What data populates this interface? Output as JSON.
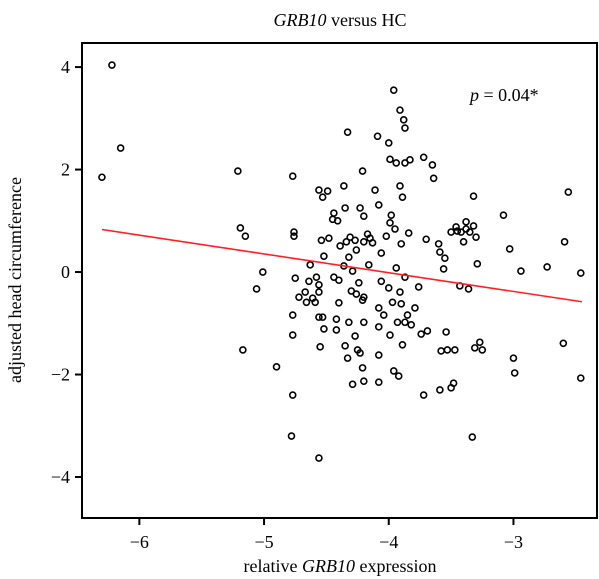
{
  "chart_data": {
    "type": "scatter",
    "title": [
      "GRB10",
      "versus HC"
    ],
    "x_label": [
      "relative",
      "GRB10",
      "expression"
    ],
    "y_label": "adjusted head circumference",
    "annotation": [
      "p",
      "= 0.04*"
    ],
    "xlim": [
      -6.46,
      -2.33
    ],
    "ylim": [
      -4.8,
      4.47
    ],
    "xticks": [
      {
        "value": -6,
        "label": "−6"
      },
      {
        "value": -5,
        "label": "−5"
      },
      {
        "value": -4,
        "label": "−4"
      },
      {
        "value": -3,
        "label": "−3"
      }
    ],
    "yticks": [
      {
        "value": -4,
        "label": "−4"
      },
      {
        "value": -2,
        "label": "−2"
      },
      0,
      2,
      4
    ],
    "point_color": "#000000",
    "fit_line": {
      "color": "#ff2020",
      "x": [
        -6.3,
        -2.45
      ],
      "y": [
        0.83,
        -0.58
      ]
    },
    "x": [
      -6.22,
      -6.15,
      -6.3,
      -5.21,
      -5.19,
      -5.15,
      -5.01,
      -5.06,
      -5.17,
      -4.9,
      -4.77,
      -4.76,
      -4.76,
      -4.75,
      -4.77,
      -4.77,
      -4.77,
      -4.78,
      -4.72,
      -4.67,
      -4.63,
      -4.64,
      -4.61,
      -4.59,
      -4.66,
      -4.58,
      -4.56,
      -4.56,
      -4.56,
      -4.53,
      -4.49,
      -4.56,
      -4.55,
      -4.56,
      -4.53,
      -4.52,
      -4.52,
      -4.54,
      -4.48,
      -4.45,
      -4.44,
      -4.41,
      -4.44,
      -4.4,
      -4.4,
      -4.42,
      -4.42,
      -4.39,
      -4.36,
      -4.35,
      -4.36,
      -4.33,
      -4.34,
      -4.31,
      -4.32,
      -4.3,
      -4.29,
      -4.35,
      -4.33,
      -4.29,
      -4.32,
      -4.27,
      -4.26,
      -4.26,
      -4.24,
      -4.27,
      -4.25,
      -4.23,
      -4.2,
      -4.21,
      -4.23,
      -4.2,
      -4.2,
      -4.17,
      -4.2,
      -4.2,
      -4.21,
      -4.21,
      -4.16,
      -4.15,
      -4.13,
      -4.11,
      -4.09,
      -4.08,
      -4.08,
      -4.08,
      -4.08,
      -4.08,
      -4.06,
      -4.06,
      -4.04,
      -4.02,
      -4.0,
      -4.0,
      -3.99,
      -3.99,
      -3.99,
      -3.98,
      -3.97,
      -3.96,
      -3.96,
      -3.95,
      -3.94,
      -3.94,
      -3.93,
      -3.92,
      -3.91,
      -3.91,
      -3.9,
      -3.91,
      -3.9,
      -3.89,
      -3.88,
      -3.87,
      -3.89,
      -3.87,
      -3.87,
      -3.87,
      -3.85,
      -3.84,
      -3.83,
      -3.82,
      -3.79,
      -3.76,
      -3.74,
      -3.72,
      -3.7,
      -3.72,
      -3.69,
      -3.65,
      -3.64,
      -3.6,
      -3.59,
      -3.58,
      -3.59,
      -3.56,
      -3.55,
      -3.54,
      -3.53,
      -3.5,
      -3.5,
      -3.48,
      -3.47,
      -3.46,
      -3.45,
      -3.43,
      -3.42,
      -3.4,
      -3.38,
      -3.38,
      -3.36,
      -3.35,
      -3.32,
      -3.32,
      -3.3,
      -3.31,
      -3.29,
      -3.33,
      -3.27,
      -3.25,
      -3.0,
      -2.99,
      -3.08,
      -3.03,
      -2.94,
      -2.73,
      -2.59,
      -2.56,
      -2.6,
      -2.46,
      -2.46
    ],
    "y": [
      4.04,
      2.42,
      1.85,
      1.97,
      0.86,
      0.7,
      0.0,
      -0.33,
      -1.52,
      -1.85,
      1.87,
      0.78,
      0.7,
      -0.12,
      -0.84,
      -1.23,
      -2.4,
      -3.2,
      -0.49,
      -0.39,
      0.14,
      -0.18,
      -0.51,
      -0.59,
      -0.59,
      -0.1,
      -0.25,
      -0.88,
      1.6,
      1.46,
      1.58,
      -0.39,
      -1.46,
      -3.63,
      -0.88,
      -1.11,
      0.31,
      0.62,
      0.66,
      1.03,
      1.15,
      1.0,
      -0.1,
      -0.16,
      -0.6,
      -1.13,
      -0.92,
      0.51,
      0.12,
      1.25,
      1.68,
      2.73,
      0.59,
      0.68,
      0.29,
      -0.37,
      0.02,
      -1.44,
      -1.68,
      -2.19,
      -0.98,
      0.62,
      0.43,
      -0.43,
      -0.21,
      -1.25,
      -1.52,
      -1.58,
      -0.98,
      -0.55,
      1.25,
      1.09,
      0.59,
      0.74,
      -0.49,
      -2.13,
      -1.87,
      1.97,
      0.14,
      0.66,
      0.57,
      1.6,
      2.65,
      1.31,
      -0.7,
      -1.07,
      -1.62,
      -2.15,
      0.37,
      -0.18,
      -0.84,
      0.7,
      -0.31,
      2.52,
      2.2,
      0.96,
      -1.23,
      1.11,
      -0.59,
      -1.93,
      3.55,
      0.84,
      2.13,
      0.08,
      -0.98,
      -2.03,
      3.16,
      1.68,
      0.55,
      -0.39,
      -0.62,
      -1.42,
      2.97,
      2.81,
      1.46,
      -0.98,
      -0.1,
      2.13,
      -0.84,
      0.76,
      2.19,
      -1.03,
      -0.7,
      -0.29,
      -1.21,
      2.24,
      0.64,
      -2.4,
      -1.15,
      2.09,
      1.83,
      0.55,
      0.39,
      -1.54,
      -2.3,
      0.06,
      0.27,
      -1.17,
      -1.52,
      0.78,
      -2.26,
      -2.17,
      -1.52,
      0.88,
      0.8,
      -0.27,
      0.78,
      0.59,
      0.84,
      0.98,
      -0.33,
      0.78,
      0.9,
      1.48,
      0.68,
      -1.48,
      0.16,
      -3.22,
      -1.37,
      -1.52,
      -1.68,
      -1.97,
      1.11,
      0.45,
      0.02,
      0.1,
      0.59,
      1.56,
      -1.39,
      -0.02,
      -2.07
    ]
  }
}
